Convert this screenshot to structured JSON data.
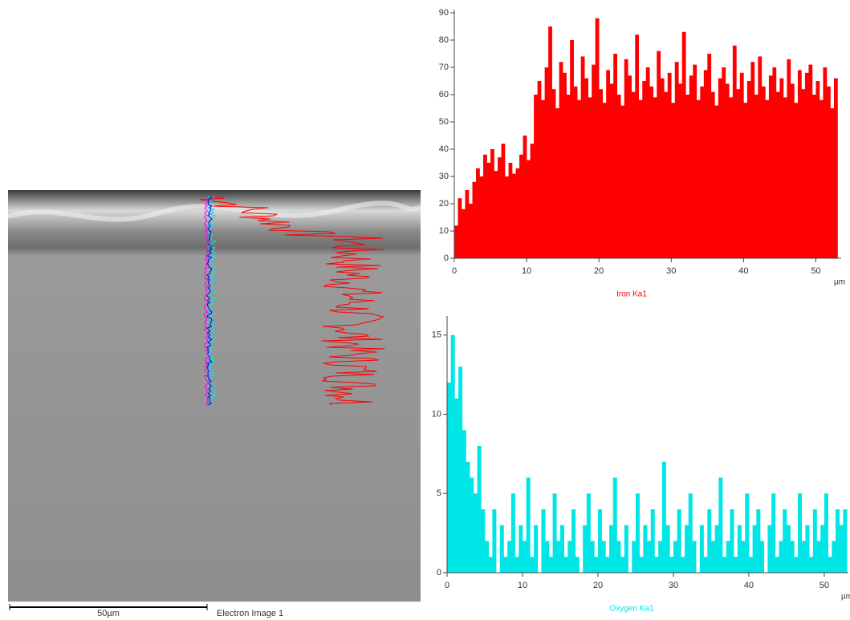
{
  "image": {
    "scale_label": "50µm",
    "caption": "Electron Image 1"
  },
  "chart_data": [
    {
      "type": "bar",
      "xlabel": "Iron Ka1",
      "x_unit": "µm",
      "color": "#ff0000",
      "x": [
        0,
        0.5,
        1,
        1.5,
        2,
        2.5,
        3,
        3.5,
        4,
        4.5,
        5,
        5.5,
        6,
        6.5,
        7,
        7.5,
        8,
        8.5,
        9,
        9.5,
        10,
        10.5,
        11,
        11.5,
        12,
        12.5,
        13,
        13.5,
        14,
        14.5,
        15,
        15.5,
        16,
        16.5,
        17,
        17.5,
        18,
        18.5,
        19,
        19.5,
        20,
        20.5,
        21,
        21.5,
        22,
        22.5,
        23,
        23.5,
        24,
        24.5,
        25,
        25.5,
        26,
        26.5,
        27,
        27.5,
        28,
        28.5,
        29,
        29.5,
        30,
        30.5,
        31,
        31.5,
        32,
        32.5,
        33,
        33.5,
        34,
        34.5,
        35,
        35.5,
        36,
        36.5,
        37,
        37.5,
        38,
        38.5,
        39,
        39.5,
        40,
        40.5,
        41,
        41.5,
        42,
        42.5,
        43,
        43.5,
        44,
        44.5,
        45,
        45.5,
        46,
        46.5,
        47,
        47.5,
        48,
        48.5,
        49,
        49.5,
        50,
        50.5,
        51,
        51.5,
        52,
        52.5
      ],
      "values": [
        12,
        22,
        18,
        25,
        20,
        28,
        33,
        30,
        38,
        35,
        40,
        32,
        37,
        42,
        30,
        35,
        31,
        33,
        38,
        45,
        36,
        42,
        60,
        65,
        58,
        70,
        85,
        62,
        55,
        72,
        68,
        60,
        80,
        63,
        58,
        74,
        66,
        59,
        71,
        88,
        62,
        57,
        69,
        64,
        75,
        60,
        56,
        73,
        67,
        61,
        82,
        58,
        65,
        70,
        63,
        59,
        76,
        66,
        61,
        68,
        57,
        72,
        64,
        83,
        60,
        67,
        71,
        58,
        63,
        69,
        75,
        61,
        56,
        66,
        70,
        64,
        59,
        78,
        62,
        68,
        57,
        65,
        72,
        60,
        74,
        63,
        58,
        67,
        70,
        61,
        66,
        59,
        73,
        64,
        57,
        69,
        62,
        68,
        71,
        60,
        65,
        58,
        70,
        63,
        55,
        66
      ],
      "xlim": [
        0,
        53.5
      ],
      "ylim": [
        0,
        90
      ],
      "xticks": [
        0,
        10,
        20,
        30,
        40,
        50
      ],
      "yticks": [
        0,
        10,
        20,
        30,
        40,
        50,
        60,
        70,
        80,
        90
      ]
    },
    {
      "type": "bar",
      "xlabel": "Oxygen Ka1",
      "x_unit": "µm",
      "color": "#00e5e5",
      "x": [
        0,
        0.5,
        1,
        1.5,
        2,
        2.5,
        3,
        3.5,
        4,
        4.5,
        5,
        5.5,
        6,
        6.5,
        7,
        7.5,
        8,
        8.5,
        9,
        9.5,
        10,
        10.5,
        11,
        11.5,
        12,
        12.5,
        13,
        13.5,
        14,
        14.5,
        15,
        15.5,
        16,
        16.5,
        17,
        17.5,
        18,
        18.5,
        19,
        19.5,
        20,
        20.5,
        21,
        21.5,
        22,
        22.5,
        23,
        23.5,
        24,
        24.5,
        25,
        25.5,
        26,
        26.5,
        27,
        27.5,
        28,
        28.5,
        29,
        29.5,
        30,
        30.5,
        31,
        31.5,
        32,
        32.5,
        33,
        33.5,
        34,
        34.5,
        35,
        35.5,
        36,
        36.5,
        37,
        37.5,
        38,
        38.5,
        39,
        39.5,
        40,
        40.5,
        41,
        41.5,
        42,
        42.5,
        43,
        43.5,
        44,
        44.5,
        45,
        45.5,
        46,
        46.5,
        47,
        47.5,
        48,
        48.5,
        49,
        49.5,
        50,
        50.5,
        51,
        51.5,
        52,
        52.5
      ],
      "values": [
        12,
        15,
        11,
        13,
        9,
        7,
        6,
        5,
        8,
        4,
        2,
        1,
        4,
        0,
        3,
        1,
        2,
        5,
        1,
        3,
        2,
        6,
        1,
        3,
        0,
        4,
        2,
        1,
        5,
        2,
        3,
        1,
        2,
        4,
        1,
        0,
        3,
        5,
        2,
        1,
        4,
        2,
        1,
        3,
        6,
        2,
        1,
        3,
        0,
        2,
        5,
        1,
        3,
        2,
        4,
        1,
        2,
        7,
        3,
        1,
        2,
        4,
        1,
        3,
        5,
        2,
        0,
        3,
        1,
        4,
        2,
        3,
        6,
        1,
        2,
        4,
        1,
        3,
        2,
        5,
        1,
        3,
        4,
        2,
        0,
        3,
        5,
        1,
        2,
        4,
        3,
        2,
        1,
        5,
        2,
        3,
        1,
        4,
        2,
        3,
        5,
        1,
        2,
        4,
        3,
        4
      ],
      "xlim": [
        0,
        53.2
      ],
      "ylim": [
        0,
        16
      ],
      "xticks": [
        0,
        10,
        20,
        30,
        40,
        50
      ],
      "yticks": [
        0,
        5,
        10,
        15
      ]
    }
  ]
}
